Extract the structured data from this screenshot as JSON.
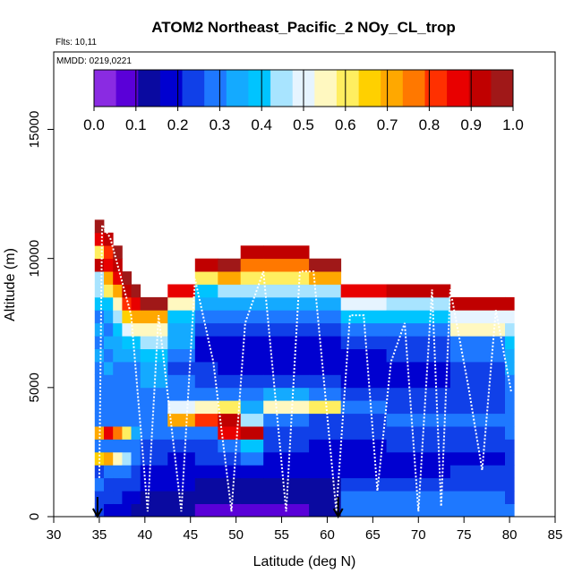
{
  "chart_data": {
    "type": "heatmap",
    "title": "ATOM2 Northeast_Pacific_2 NOy_CL_trop",
    "flights_label": "Flts: 10,11",
    "dates_label": "MMDD: 0219,0221",
    "xlabel": "Latitude (deg N)",
    "ylabel": "Altitude (m)",
    "xlim": [
      30,
      85
    ],
    "ylim": [
      0,
      18000
    ],
    "xticks": [
      "30",
      "35",
      "40",
      "45",
      "50",
      "55",
      "60",
      "65",
      "70",
      "75",
      "80",
      "85"
    ],
    "yticks": [
      "0",
      "5000",
      "10000",
      "15000"
    ],
    "colorbar": {
      "range": [
        0.0,
        1.0
      ],
      "ticks": [
        "0.0",
        "0.1",
        "0.2",
        "0.3",
        "0.4",
        "0.5",
        "0.6",
        "0.7",
        "0.8",
        "0.9",
        "1.0"
      ],
      "colors": [
        "#8a2be2",
        "#5a00d8",
        "#0a0aa0",
        "#0000d0",
        "#1040e8",
        "#1e78ff",
        "#14aaff",
        "#00c4ff",
        "#a8e4ff",
        "#e6f4ff",
        "#fff8c0",
        "#ffee60",
        "#ffd000",
        "#ffa800",
        "#ff7800",
        "#ff3000",
        "#e80000",
        "#c00000",
        "#a01818"
      ]
    },
    "arrows_lat": [
      34.8,
      61.2
    ],
    "columns": [
      {
        "lat": [
          34.5,
          35.5
        ],
        "alt_top": 11500,
        "values": [
          0.22,
          0.25,
          0.28,
          0.26,
          0.65,
          0.28,
          0.7,
          0.3,
          0.3,
          0.3,
          0.28,
          0.3,
          0.35,
          0.3,
          0.32,
          0.3,
          0.4,
          0.45,
          0.45,
          0.9,
          0.6,
          0.85,
          0.95
        ]
      },
      {
        "lat": [
          35.5,
          36.5
        ],
        "alt_top": 11000,
        "values": [
          0.2,
          0.23,
          0.26,
          0.28,
          0.7,
          0.3,
          0.85,
          0.3,
          0.3,
          0.28,
          0.3,
          0.32,
          0.3,
          0.33,
          0.3,
          0.35,
          0.4,
          0.6,
          0.7,
          0.85,
          0.8,
          0.9
        ]
      },
      {
        "lat": [
          36.5,
          37.5
        ],
        "alt_top": 10500,
        "values": [
          0.2,
          0.22,
          0.25,
          0.28,
          0.55,
          0.3,
          0.75,
          0.3,
          0.28,
          0.3,
          0.28,
          0.3,
          0.32,
          0.35,
          0.4,
          0.45,
          0.55,
          0.7,
          0.85,
          0.9,
          0.95
        ]
      },
      {
        "lat": [
          37.5,
          38.5
        ],
        "alt_top": 9500,
        "values": [
          0.18,
          0.2,
          0.24,
          0.28,
          0.45,
          0.3,
          0.6,
          0.3,
          0.3,
          0.28,
          0.3,
          0.3,
          0.35,
          0.4,
          0.5,
          0.65,
          0.8,
          0.9,
          0.95
        ]
      },
      {
        "lat": [
          38.5,
          39.5
        ],
        "alt_top": 9000,
        "values": [
          0.15,
          0.18,
          0.22,
          0.25,
          0.3,
          0.28,
          0.35,
          0.3,
          0.28,
          0.28,
          0.3,
          0.3,
          0.32,
          0.4,
          0.55,
          0.7,
          0.85,
          0.95
        ]
      },
      {
        "lat": [
          39.5,
          42.5
        ],
        "alt_top": 8500,
        "values": [
          0.12,
          0.14,
          0.18,
          0.2,
          0.22,
          0.25,
          0.28,
          0.3,
          0.28,
          0.3,
          0.32,
          0.35,
          0.4,
          0.45,
          0.55,
          0.7,
          0.95
        ]
      },
      {
        "lat": [
          42.5,
          45.5
        ],
        "alt_top": 9000,
        "values": [
          0.12,
          0.14,
          0.16,
          0.18,
          0.2,
          0.25,
          0.3,
          0.7,
          0.5,
          0.3,
          0.28,
          0.25,
          0.3,
          0.32,
          0.35,
          0.4,
          0.55,
          0.85
        ]
      },
      {
        "lat": [
          45.5,
          48.0
        ],
        "alt_top": 10000,
        "values": [
          0.1,
          0.12,
          0.15,
          0.18,
          0.22,
          0.25,
          0.3,
          0.8,
          0.55,
          0.3,
          0.25,
          0.22,
          0.2,
          0.2,
          0.25,
          0.3,
          0.35,
          0.4,
          0.6,
          0.9
        ]
      },
      {
        "lat": [
          48.0,
          50.5
        ],
        "alt_top": 10000,
        "values": [
          0.1,
          0.12,
          0.15,
          0.18,
          0.22,
          0.3,
          0.85,
          0.9,
          0.6,
          0.3,
          0.22,
          0.2,
          0.2,
          0.18,
          0.22,
          0.28,
          0.35,
          0.45,
          0.7,
          0.95
        ]
      },
      {
        "lat": [
          50.5,
          53.0
        ],
        "alt_top": 10500,
        "values": [
          0.1,
          0.12,
          0.15,
          0.2,
          0.3,
          0.4,
          0.9,
          0.45,
          0.35,
          0.3,
          0.22,
          0.18,
          0.18,
          0.2,
          0.22,
          0.28,
          0.35,
          0.45,
          0.6,
          0.75,
          0.9
        ]
      },
      {
        "lat": [
          53.0,
          58.0
        ],
        "alt_top": 10500,
        "values": [
          0.1,
          0.12,
          0.15,
          0.18,
          0.2,
          0.22,
          0.25,
          0.28,
          0.55,
          0.35,
          0.22,
          0.18,
          0.18,
          0.2,
          0.22,
          0.28,
          0.35,
          0.45,
          0.6,
          0.75,
          0.9
        ]
      },
      {
        "lat": [
          58.0,
          61.5
        ],
        "alt_top": 10000,
        "values": [
          0.12,
          0.14,
          0.15,
          0.16,
          0.18,
          0.2,
          0.22,
          0.25,
          0.6,
          0.3,
          0.22,
          0.18,
          0.18,
          0.2,
          0.22,
          0.28,
          0.35,
          0.45,
          0.7,
          0.95
        ]
      },
      {
        "lat": [
          61.5,
          66.5
        ],
        "alt_top": 9000,
        "values": [
          0.3,
          0.28,
          0.22,
          0.2,
          0.18,
          0.2,
          0.22,
          0.25,
          0.28,
          0.25,
          0.2,
          0.18,
          0.2,
          0.22,
          0.3,
          0.4,
          0.5,
          0.85
        ]
      },
      {
        "lat": [
          66.5,
          73.5
        ],
        "alt_top": 9000,
        "values": [
          0.3,
          0.28,
          0.22,
          0.2,
          0.2,
          0.22,
          0.25,
          0.28,
          0.25,
          0.22,
          0.2,
          0.2,
          0.22,
          0.25,
          0.3,
          0.4,
          0.45,
          0.9
        ]
      },
      {
        "lat": [
          73.5,
          79.5
        ],
        "alt_top": 8500,
        "values": [
          0.3,
          0.28,
          0.25,
          0.22,
          0.2,
          0.22,
          0.25,
          0.28,
          0.25,
          0.22,
          0.22,
          0.25,
          0.28,
          0.3,
          0.55,
          0.5,
          0.9
        ]
      },
      {
        "lat": [
          79.5,
          80.5
        ],
        "alt_top": 8500,
        "values": [
          0.28,
          0.26,
          0.25,
          0.24,
          0.25,
          0.26,
          0.28,
          0.3,
          0.3,
          0.28,
          0.3,
          0.32,
          0.35,
          0.4,
          0.45,
          0.5,
          0.9
        ]
      }
    ]
  }
}
